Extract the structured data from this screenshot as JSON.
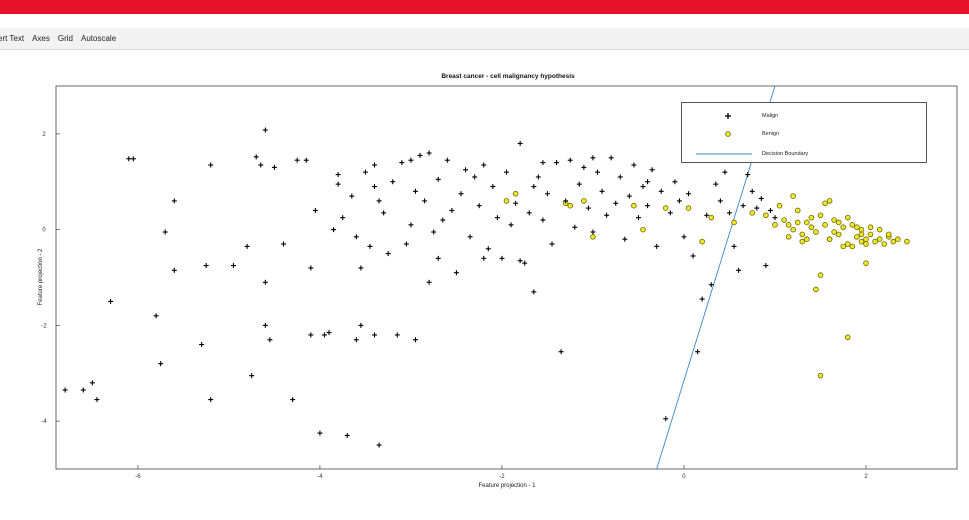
{
  "topbar": {
    "color": "#e8132a"
  },
  "menubar": {
    "items": [
      "ert Text",
      "Axes",
      "Grid",
      "Autoscale"
    ]
  },
  "colors": {
    "malign": "#000000",
    "benign_fill": "#f0e62b",
    "benign_edge": "#6b6a00",
    "boundary": "#3b86c6"
  },
  "chart_data": {
    "type": "scatter",
    "title": "Breast cancer - cell malignancy hypothesis",
    "xlabel": "Feature projection - 1",
    "ylabel": "Feature projection - 2",
    "xlim": [
      -6.9,
      3.0
    ],
    "ylim": [
      -5.0,
      3.0
    ],
    "xticks": [
      -6,
      -4,
      -2,
      0,
      2
    ],
    "yticks": [
      -4,
      -2,
      0,
      2
    ],
    "legend_position": "top-right",
    "series": [
      {
        "name": "Malign",
        "marker": "plus",
        "points": [
          [
            -6.8,
            -3.35
          ],
          [
            -6.6,
            -3.35
          ],
          [
            -6.5,
            -3.2
          ],
          [
            -6.45,
            -3.55
          ],
          [
            -6.3,
            -1.5
          ],
          [
            -6.1,
            1.48
          ],
          [
            -5.8,
            -1.8
          ],
          [
            -5.75,
            -2.8
          ],
          [
            -5.7,
            -0.05
          ],
          [
            -5.6,
            0.6
          ],
          [
            -5.6,
            -0.85
          ],
          [
            -5.3,
            -2.4
          ],
          [
            -5.25,
            -0.75
          ],
          [
            -5.2,
            1.35
          ],
          [
            -5.2,
            -3.55
          ],
          [
            -4.95,
            -0.75
          ],
          [
            -4.8,
            -0.35
          ],
          [
            -4.75,
            -3.05
          ],
          [
            -4.7,
            1.52
          ],
          [
            -4.65,
            1.35
          ],
          [
            -4.6,
            2.08
          ],
          [
            -4.6,
            -1.1
          ],
          [
            -4.6,
            -2.0
          ],
          [
            -4.55,
            -2.3
          ],
          [
            -4.5,
            1.3
          ],
          [
            -4.4,
            -0.3
          ],
          [
            -4.3,
            -3.55
          ],
          [
            -4.25,
            1.45
          ],
          [
            -4.15,
            1.45
          ],
          [
            -4.05,
            0.4
          ],
          [
            -4.0,
            -4.25
          ],
          [
            -3.95,
            -2.2
          ],
          [
            -3.9,
            -2.15
          ],
          [
            -3.85,
            0.0
          ],
          [
            -3.8,
            1.15
          ],
          [
            -3.8,
            0.95
          ],
          [
            -3.75,
            0.25
          ],
          [
            -3.7,
            -4.3
          ],
          [
            -3.65,
            0.7
          ],
          [
            -3.6,
            -0.15
          ],
          [
            -3.55,
            -0.8
          ],
          [
            -3.5,
            1.2
          ],
          [
            -3.45,
            -0.35
          ],
          [
            -3.4,
            1.35
          ],
          [
            -3.4,
            0.9
          ],
          [
            -3.35,
            -4.5
          ],
          [
            -3.35,
            0.6
          ],
          [
            -3.3,
            0.35
          ],
          [
            -3.25,
            -0.5
          ],
          [
            -3.2,
            1.0
          ],
          [
            -3.15,
            -2.2
          ],
          [
            -3.1,
            1.4
          ],
          [
            -3.05,
            -0.3
          ],
          [
            -3.0,
            0.1
          ],
          [
            -2.95,
            -2.3
          ],
          [
            -2.95,
            0.8
          ],
          [
            -2.9,
            1.55
          ],
          [
            -2.85,
            0.6
          ],
          [
            -2.8,
            1.6
          ],
          [
            -2.8,
            -1.1
          ],
          [
            -2.75,
            -0.05
          ],
          [
            -2.7,
            -0.6
          ],
          [
            -2.7,
            1.05
          ],
          [
            -2.65,
            0.2
          ],
          [
            -2.6,
            1.45
          ],
          [
            -2.55,
            0.4
          ],
          [
            -2.5,
            -0.9
          ],
          [
            -2.45,
            0.75
          ],
          [
            -2.4,
            1.25
          ],
          [
            -2.35,
            -0.15
          ],
          [
            -2.3,
            1.1
          ],
          [
            -2.25,
            0.5
          ],
          [
            -2.2,
            1.35
          ],
          [
            -2.15,
            -0.4
          ],
          [
            -2.1,
            0.9
          ],
          [
            -2.05,
            0.25
          ],
          [
            -2.0,
            -0.6
          ],
          [
            -1.95,
            1.2
          ],
          [
            -1.9,
            0.1
          ],
          [
            -1.85,
            0.55
          ],
          [
            -1.8,
            1.8
          ],
          [
            -1.8,
            -0.65
          ],
          [
            -1.75,
            -0.7
          ],
          [
            -1.7,
            0.35
          ],
          [
            -1.65,
            -1.3
          ],
          [
            -1.65,
            0.9
          ],
          [
            -1.6,
            1.1
          ],
          [
            -1.55,
            0.2
          ],
          [
            -1.5,
            0.75
          ],
          [
            -1.45,
            -0.3
          ],
          [
            -1.4,
            1.4
          ],
          [
            -1.35,
            -2.55
          ],
          [
            -1.3,
            0.6
          ],
          [
            -1.25,
            1.45
          ],
          [
            -1.2,
            0.05
          ],
          [
            -1.15,
            0.95
          ],
          [
            -1.1,
            1.3
          ],
          [
            -1.05,
            0.45
          ],
          [
            -1.0,
            -0.05
          ],
          [
            -0.95,
            1.2
          ],
          [
            -0.9,
            0.8
          ],
          [
            -0.85,
            0.3
          ],
          [
            -0.8,
            1.5
          ],
          [
            -0.75,
            0.55
          ],
          [
            -0.7,
            1.1
          ],
          [
            -0.65,
            -0.2
          ],
          [
            -0.6,
            0.7
          ],
          [
            -0.55,
            1.35
          ],
          [
            -0.5,
            0.25
          ],
          [
            -0.45,
            0.9
          ],
          [
            -0.4,
            0.5
          ],
          [
            -0.35,
            1.25
          ],
          [
            -0.3,
            -0.35
          ],
          [
            -0.25,
            0.8
          ],
          [
            -0.2,
            -3.95
          ],
          [
            -0.15,
            0.35
          ],
          [
            -0.1,
            1.0
          ],
          [
            -0.05,
            0.6
          ],
          [
            0.0,
            -0.15
          ],
          [
            0.05,
            0.75
          ],
          [
            0.1,
            -0.55
          ],
          [
            0.15,
            -2.55
          ],
          [
            0.2,
            -1.45
          ],
          [
            0.25,
            0.3
          ],
          [
            0.3,
            -1.15
          ],
          [
            0.35,
            0.95
          ],
          [
            0.4,
            0.6
          ],
          [
            0.45,
            1.2
          ],
          [
            0.5,
            0.35
          ],
          [
            0.55,
            -0.35
          ],
          [
            0.6,
            -0.85
          ],
          [
            0.65,
            0.5
          ],
          [
            0.7,
            1.15
          ],
          [
            0.75,
            0.8
          ],
          [
            0.8,
            0.45
          ],
          [
            0.85,
            0.65
          ],
          [
            0.9,
            -0.75
          ],
          [
            0.95,
            0.4
          ],
          [
            1.0,
            0.25
          ],
          [
            -6.05,
            1.48
          ],
          [
            -4.1,
            -2.2
          ],
          [
            -3.55,
            -2.0
          ],
          [
            -3.6,
            -2.3
          ],
          [
            -3.4,
            -2.2
          ],
          [
            -4.1,
            -0.8
          ],
          [
            -3.0,
            1.45
          ],
          [
            -2.2,
            -0.6
          ],
          [
            -1.55,
            1.4
          ],
          [
            -1.0,
            1.5
          ],
          [
            -0.4,
            1.0
          ]
        ]
      },
      {
        "name": "Benign",
        "marker": "circle",
        "points": [
          [
            -1.95,
            0.6
          ],
          [
            -1.85,
            0.75
          ],
          [
            -1.3,
            0.55
          ],
          [
            -1.25,
            0.5
          ],
          [
            -1.1,
            0.6
          ],
          [
            -1.0,
            -0.15
          ],
          [
            -0.55,
            0.5
          ],
          [
            -0.45,
            0.0
          ],
          [
            -0.2,
            0.45
          ],
          [
            0.05,
            0.45
          ],
          [
            0.2,
            -0.25
          ],
          [
            0.3,
            0.25
          ],
          [
            0.55,
            0.15
          ],
          [
            0.75,
            0.35
          ],
          [
            0.9,
            0.3
          ],
          [
            1.0,
            0.1
          ],
          [
            1.05,
            0.5
          ],
          [
            1.1,
            0.2
          ],
          [
            1.15,
            -0.15
          ],
          [
            1.2,
            0.0
          ],
          [
            1.25,
            0.4
          ],
          [
            1.3,
            -0.25
          ],
          [
            1.35,
            0.15
          ],
          [
            1.4,
            0.05
          ],
          [
            1.45,
            -0.05
          ],
          [
            1.5,
            0.3
          ],
          [
            1.55,
            0.1
          ],
          [
            1.6,
            -0.2
          ],
          [
            1.65,
            0.2
          ],
          [
            1.7,
            -0.1
          ],
          [
            1.75,
            0.05
          ],
          [
            1.8,
            -0.3
          ],
          [
            1.85,
            0.1
          ],
          [
            1.9,
            -0.15
          ],
          [
            1.95,
            0.0
          ],
          [
            2.0,
            -0.2
          ],
          [
            2.05,
            -0.1
          ],
          [
            2.1,
            -0.25
          ],
          [
            2.15,
            0.0
          ],
          [
            2.2,
            -0.3
          ],
          [
            2.25,
            -0.15
          ],
          [
            2.3,
            -0.25
          ],
          [
            2.35,
            -0.2
          ],
          [
            2.45,
            -0.25
          ],
          [
            1.55,
            0.55
          ],
          [
            1.6,
            0.6
          ],
          [
            1.2,
            0.7
          ],
          [
            1.5,
            -0.95
          ],
          [
            1.45,
            -1.25
          ],
          [
            1.6,
            -0.2
          ],
          [
            1.8,
            0.25
          ],
          [
            1.85,
            -0.35
          ],
          [
            1.95,
            -0.1
          ],
          [
            2.0,
            -0.3
          ],
          [
            1.75,
            -0.35
          ],
          [
            1.65,
            -0.05
          ],
          [
            1.9,
            0.05
          ],
          [
            2.05,
            0.05
          ],
          [
            2.15,
            -0.2
          ],
          [
            1.7,
            0.15
          ],
          [
            1.4,
            0.25
          ],
          [
            1.3,
            -0.1
          ],
          [
            1.25,
            0.15
          ],
          [
            1.15,
            0.1
          ],
          [
            1.35,
            -0.2
          ],
          [
            2.0,
            -0.7
          ],
          [
            1.8,
            -2.25
          ],
          [
            1.5,
            -3.05
          ],
          [
            1.95,
            -0.25
          ],
          [
            2.25,
            -0.1
          ]
        ]
      }
    ],
    "decision_boundary": {
      "name": "Decision Boundary",
      "x": [
        -0.3,
        1.0
      ],
      "y": [
        -5.0,
        3.0
      ]
    }
  }
}
